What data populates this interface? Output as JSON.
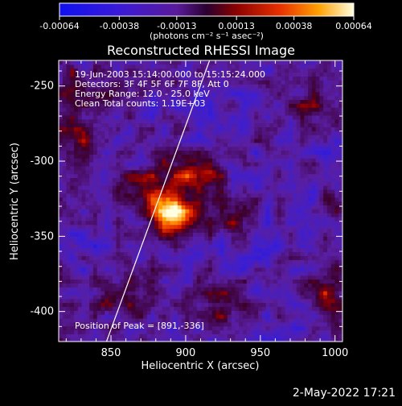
{
  "chart_data": {
    "type": "heatmap",
    "title": "Reconstructed RHESSI Image",
    "xlabel": "Heliocentric X (arcsec)",
    "ylabel": "Heliocentric Y (arcsec)",
    "xlim": [
      815,
      1005
    ],
    "ylim": [
      -420,
      -233
    ],
    "xticks": [
      850,
      900,
      950,
      1000
    ],
    "yticks": [
      -250,
      -300,
      -350,
      -400
    ],
    "colorbar": {
      "unit_label": "(photons cm⁻² s⁻¹ asec⁻²)",
      "range": [
        -0.00064,
        0.00064
      ],
      "ticks": [
        "-0.00064",
        "-0.00038",
        "-0.00013",
        "0.00013",
        "0.00038",
        "0.00064"
      ]
    },
    "annotations": [
      "19-Jun-2003 15:14:00.000 to 15:15:24.000",
      "Detectors: 3F 4F 5F 6F 7F 8F, Att 0",
      "Energy Range: 12.0 - 25.0 keV",
      "Clean     Total counts: 1.19E+03"
    ],
    "peak_label": "Position of Peak = [891,-336]",
    "peak": [
      891,
      -336
    ],
    "limb_line": [
      [
        847,
        -420
      ],
      [
        916,
        -233
      ]
    ],
    "sources": [
      {
        "x": 891,
        "y": -336,
        "sx": 12,
        "sy": 10,
        "amp": 1.0
      },
      {
        "x": 905,
        "y": -305,
        "sx": 14,
        "sy": 9,
        "amp": 0.55
      },
      {
        "x": 870,
        "y": -318,
        "sx": 16,
        "sy": 10,
        "amp": 0.45
      },
      {
        "x": 935,
        "y": -335,
        "sx": 10,
        "sy": 10,
        "amp": 0.4
      },
      {
        "x": 828,
        "y": -295,
        "sx": 10,
        "sy": 20,
        "amp": 0.45
      },
      {
        "x": 822,
        "y": -250,
        "sx": 8,
        "sy": 10,
        "amp": 0.35
      },
      {
        "x": 845,
        "y": -255,
        "sx": 8,
        "sy": 8,
        "amp": 0.3
      },
      {
        "x": 860,
        "y": -390,
        "sx": 14,
        "sy": 12,
        "amp": 0.4
      },
      {
        "x": 925,
        "y": -395,
        "sx": 10,
        "sy": 14,
        "amp": 0.35
      },
      {
        "x": 995,
        "y": -390,
        "sx": 10,
        "sy": 12,
        "amp": 0.4
      },
      {
        "x": 985,
        "y": -265,
        "sx": 10,
        "sy": 10,
        "amp": 0.3
      },
      {
        "x": 1000,
        "y": -325,
        "sx": 6,
        "sy": 8,
        "amp": 0.25
      }
    ]
  },
  "footer": {
    "timestamp": "2-May-2022 17:21"
  }
}
